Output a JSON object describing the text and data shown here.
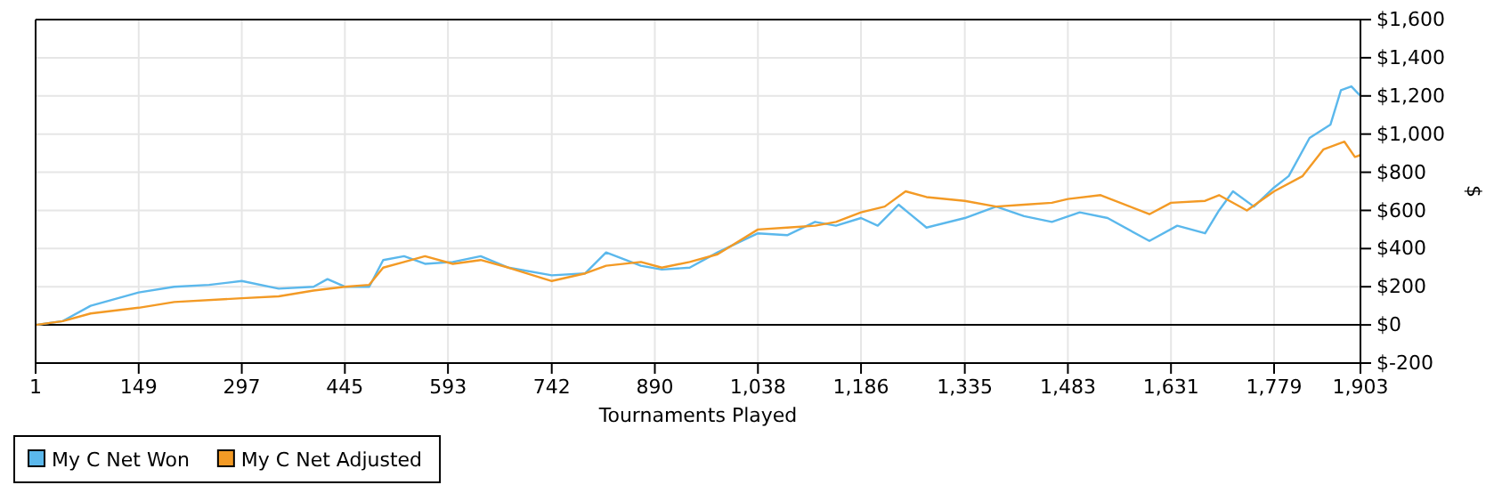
{
  "chart_data": {
    "type": "line",
    "xlabel": "Tournaments Played",
    "ylabel": "$",
    "xlim": [
      1,
      1903
    ],
    "xticks": [
      {
        "value": 1,
        "label": "1"
      },
      {
        "value": 149,
        "label": "149"
      },
      {
        "value": 297,
        "label": "297"
      },
      {
        "value": 445,
        "label": "445"
      },
      {
        "value": 593,
        "label": "593"
      },
      {
        "value": 742,
        "label": "742"
      },
      {
        "value": 890,
        "label": "890"
      },
      {
        "value": 1038,
        "label": "1,038"
      },
      {
        "value": 1186,
        "label": "1,186"
      },
      {
        "value": 1335,
        "label": "1,335"
      },
      {
        "value": 1483,
        "label": "1,483"
      },
      {
        "value": 1631,
        "label": "1,631"
      },
      {
        "value": 1779,
        "label": "1,779"
      },
      {
        "value": 1903,
        "label": "1,903"
      }
    ],
    "ylim": [
      -200,
      1600
    ],
    "yticks": [
      {
        "value": -200,
        "label": "$-200"
      },
      {
        "value": 0,
        "label": "$0"
      },
      {
        "value": 200,
        "label": "$200"
      },
      {
        "value": 400,
        "label": "$400"
      },
      {
        "value": 600,
        "label": "$600"
      },
      {
        "value": 800,
        "label": "$800"
      },
      {
        "value": 1000,
        "label": "$1,000"
      },
      {
        "value": 1200,
        "label": "$1,200"
      },
      {
        "value": 1400,
        "label": "$1,400"
      },
      {
        "value": 1600,
        "label": "$1,600"
      }
    ],
    "grid": true,
    "legend": "bottom left",
    "ref_lines": [
      {
        "axis": "y",
        "value": 0,
        "color": "#000000"
      }
    ],
    "series": [
      {
        "name": "My C Net Won",
        "color": "#5bb8ec",
        "x": [
          1,
          40,
          80,
          149,
          200,
          250,
          297,
          350,
          400,
          420,
          445,
          480,
          500,
          530,
          560,
          600,
          640,
          680,
          742,
          790,
          820,
          870,
          900,
          940,
          980,
          1038,
          1080,
          1120,
          1150,
          1186,
          1210,
          1240,
          1280,
          1335,
          1380,
          1420,
          1460,
          1500,
          1540,
          1600,
          1640,
          1680,
          1700,
          1720,
          1750,
          1779,
          1800,
          1830,
          1860,
          1875,
          1890,
          1903
        ],
        "values": [
          0,
          20,
          100,
          170,
          200,
          210,
          230,
          190,
          200,
          240,
          200,
          200,
          340,
          360,
          320,
          330,
          360,
          300,
          260,
          270,
          380,
          310,
          290,
          300,
          380,
          480,
          470,
          540,
          520,
          560,
          520,
          630,
          510,
          560,
          620,
          570,
          540,
          590,
          560,
          440,
          520,
          480,
          600,
          700,
          620,
          720,
          780,
          980,
          1050,
          1230,
          1250,
          1200
        ]
      },
      {
        "name": "My C Net Adjusted",
        "color": "#f39a25",
        "x": [
          1,
          40,
          80,
          149,
          200,
          297,
          350,
          400,
          445,
          480,
          500,
          530,
          560,
          600,
          640,
          680,
          742,
          790,
          820,
          870,
          900,
          940,
          980,
          1038,
          1080,
          1120,
          1150,
          1186,
          1220,
          1250,
          1280,
          1335,
          1380,
          1420,
          1460,
          1483,
          1530,
          1600,
          1631,
          1680,
          1700,
          1740,
          1779,
          1820,
          1850,
          1880,
          1895,
          1903
        ],
        "values": [
          0,
          20,
          60,
          90,
          120,
          140,
          150,
          180,
          200,
          210,
          300,
          330,
          360,
          320,
          340,
          300,
          230,
          270,
          310,
          330,
          300,
          330,
          370,
          500,
          510,
          520,
          540,
          590,
          620,
          700,
          670,
          650,
          620,
          630,
          640,
          660,
          680,
          580,
          640,
          650,
          680,
          600,
          700,
          780,
          920,
          960,
          880,
          890
        ]
      }
    ]
  }
}
